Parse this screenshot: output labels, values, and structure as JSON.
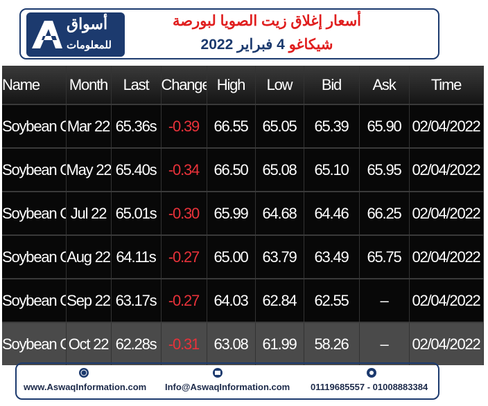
{
  "header": {
    "logo_line1": "أسواق",
    "logo_line2": "للمعلومات",
    "title_line1": "أسعار إغلاق زيت الصويا لبورصة",
    "title_line2_red": "شيكاغو",
    "title_line2": "4 فبراير 2022"
  },
  "table": {
    "columns": [
      "Name",
      "Month",
      "Last",
      "Change",
      "High",
      "Low",
      "Bid",
      "Ask",
      "Time"
    ],
    "rows": [
      [
        "Soybean Oil",
        "Mar 22",
        "65.36s",
        "-0.39",
        "66.55",
        "65.05",
        "65.39",
        "65.90",
        "02/04/2022"
      ],
      [
        "Soybean Oil",
        "May 22",
        "65.40s",
        "-0.34",
        "66.50",
        "65.08",
        "65.10",
        "65.95",
        "02/04/2022"
      ],
      [
        "Soybean Oil",
        "Jul 22",
        "65.01s",
        "-0.30",
        "65.99",
        "64.68",
        "64.46",
        "66.25",
        "02/04/2022"
      ],
      [
        "Soybean Oil",
        "Aug 22",
        "64.11s",
        "-0.27",
        "65.00",
        "63.79",
        "63.49",
        "65.75",
        "02/04/2022"
      ],
      [
        "Soybean Oil",
        "Sep 22",
        "63.17s",
        "-0.27",
        "64.03",
        "62.84",
        "62.55",
        "–",
        "02/04/2022"
      ],
      [
        "Soybean Oil",
        "Oct 22",
        "62.28s",
        "-0.31",
        "63.08",
        "61.99",
        "58.26",
        "–",
        "02/04/2022"
      ]
    ]
  },
  "footer": {
    "website": "www.AswaqInformation.com",
    "email": "Info@AswaqInformation.com",
    "phone": "01119685557 - 01008883384"
  }
}
